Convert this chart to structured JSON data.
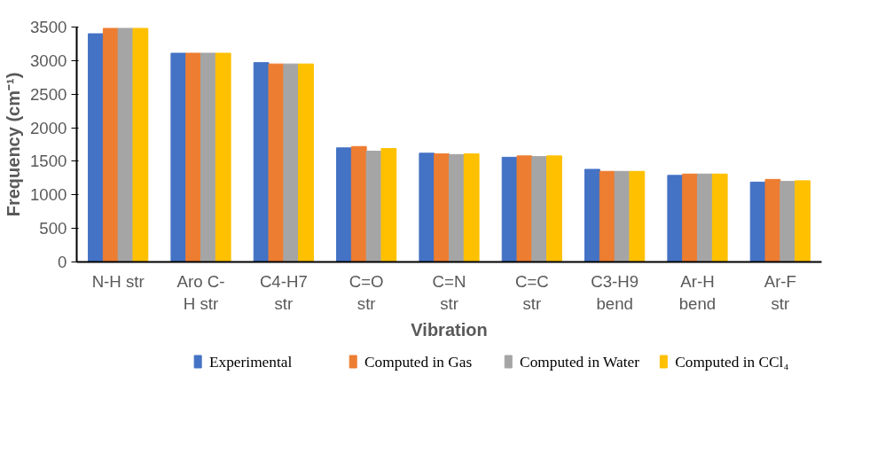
{
  "chart_data": {
    "type": "bar",
    "xlabel": "Vibration",
    "ylabel": "Frequency (cm⁻¹)",
    "categories": [
      "N-H str",
      "Aro C-\nH str",
      "C4-H7\nstr",
      "C=O\nstr",
      "C=N\nstr",
      "C=C\nstr",
      "C3-H9\nbend",
      "Ar-H\nbend",
      "Ar-F\nstr"
    ],
    "series": [
      {
        "name": "Experimental",
        "color": "#4472c4",
        "values": [
          3400,
          3110,
          2970,
          1700,
          1620,
          1560,
          1380,
          1290,
          1190
        ]
      },
      {
        "name": "Computed in Gas",
        "color": "#ed7d31",
        "values": [
          3480,
          3110,
          2950,
          1720,
          1610,
          1580,
          1350,
          1310,
          1230
        ]
      },
      {
        "name": "Computed in Water",
        "color": "#a5a5a5",
        "values": [
          3480,
          3110,
          2950,
          1650,
          1600,
          1570,
          1350,
          1310,
          1200
        ]
      },
      {
        "name": "Computed in CCl₄",
        "color": "#ffc000",
        "values": [
          3480,
          3110,
          2950,
          1690,
          1610,
          1580,
          1350,
          1310,
          1210
        ]
      }
    ],
    "ylim": [
      0,
      3500
    ],
    "yticks": [
      0,
      500,
      1000,
      1500,
      2000,
      2500,
      3000,
      3500
    ],
    "grid": false,
    "legend": "bottom"
  }
}
